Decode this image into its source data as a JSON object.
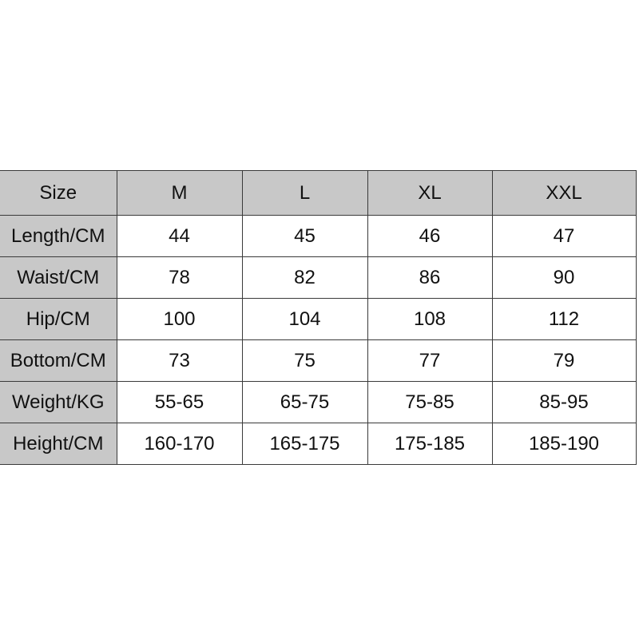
{
  "size_chart": {
    "header": [
      "Size",
      "M",
      "L",
      "XL",
      "XXL"
    ],
    "rows": [
      {
        "label": "Length/CM",
        "values": [
          "44",
          "45",
          "46",
          "47"
        ]
      },
      {
        "label": "Waist/CM",
        "values": [
          "78",
          "82",
          "86",
          "90"
        ]
      },
      {
        "label": "Hip/CM",
        "values": [
          "100",
          "104",
          "108",
          "112"
        ]
      },
      {
        "label": "Bottom/CM",
        "values": [
          "73",
          "75",
          "77",
          "79"
        ]
      },
      {
        "label": "Weight/KG",
        "values": [
          "55-65",
          "65-75",
          "75-85",
          "85-95"
        ]
      },
      {
        "label": "Height/CM",
        "values": [
          "160-170",
          "165-175",
          "175-185",
          "185-190"
        ]
      }
    ]
  },
  "colors": {
    "header_bg": "#c8c8c8",
    "border": "#3a3a3a",
    "cell_bg": "#ffffff"
  }
}
